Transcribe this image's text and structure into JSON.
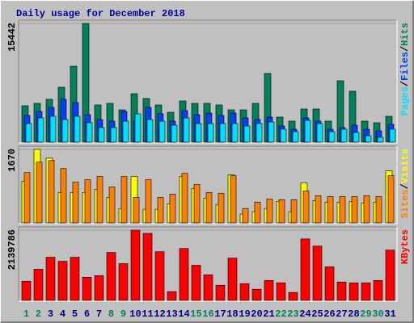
{
  "chart_data": [
    {
      "type": "bar",
      "title": "Daily usage for December 2018",
      "ylim": [
        0,
        15442
      ],
      "yticks": [
        15442
      ],
      "legend_separator": "/",
      "series": [
        {
          "name": "Hits",
          "color": "#00805C",
          "values": [
            4727,
            5042,
            5568,
            7143,
            9875,
            15442,
            4832,
            5042,
            4202,
            6303,
            5673,
            4832,
            3887,
            5358,
            5042,
            5042,
            4832,
            4202,
            4202,
            5042,
            8929,
            3257,
            2731,
            4307,
            4307,
            2731,
            7984,
            6618,
            2731,
            2521,
            3362
          ]
        },
        {
          "name": "Files",
          "color": "#0040FF",
          "values": [
            3467,
            3992,
            4517,
            5568,
            5147,
            3572,
            2941,
            2731,
            3992,
            2731,
            4517,
            3677,
            2731,
            4097,
            3572,
            3782,
            3467,
            3782,
            3152,
            2941,
            3257,
            2101,
            1681,
            3152,
            2731,
            1681,
            1891,
            2206,
            1681,
            1471,
            2311
          ]
        },
        {
          "name": "Pages",
          "color": "#00E0FF",
          "values": [
            2416,
            3152,
            3362,
            2941,
            3362,
            2521,
            1891,
            1891,
            2731,
            3677,
            2941,
            2731,
            2206,
            3152,
            2416,
            2416,
            2416,
            2416,
            2101,
            2416,
            2626,
            1681,
            1366,
            2836,
            2416,
            1366,
            1681,
            1261,
            840,
            630,
            1681
          ]
        }
      ]
    },
    {
      "type": "bar",
      "ylim": [
        0,
        1670
      ],
      "yticks": [
        1670
      ],
      "legend_separator": "/",
      "series": [
        {
          "name": "Visits",
          "color": "#FFFF00",
          "values": [
            944,
            1670,
            1470,
            690,
            690,
            690,
            762,
            581,
            327,
            1053,
            309,
            309,
            436,
            1053,
            780,
            563,
            418,
            1089,
            200,
            254,
            327,
            490,
            254,
            908,
            508,
            472,
            472,
            490,
            454,
            472,
            1180
          ]
        },
        {
          "name": "Sites",
          "color": "#FF8000",
          "values": [
            1144,
            1380,
            1416,
            1234,
            926,
            980,
            1053,
            817,
            1053,
            581,
            980,
            581,
            654,
            1126,
            871,
            690,
            672,
            1071,
            327,
            472,
            545,
            527,
            527,
            726,
            617,
            599,
            599,
            599,
            617,
            599,
            1071
          ]
        }
      ]
    },
    {
      "type": "bar",
      "ylim": [
        0,
        2139786
      ],
      "yticks": [
        2139786
      ],
      "categories": [
        "1",
        "2",
        "3",
        "4",
        "5",
        "6",
        "7",
        "8",
        "9",
        "10",
        "11",
        "12",
        "13",
        "14",
        "15",
        "16",
        "17",
        "18",
        "19",
        "20",
        "21",
        "22",
        "23",
        "24",
        "25",
        "26",
        "27",
        "28",
        "29",
        "30",
        "31"
      ],
      "category_colors": [
        "#00805C",
        "#00805C",
        "#000080",
        "#000080",
        "#000080",
        "#000080",
        "#000080",
        "#00805C",
        "#00805C",
        "#000080",
        "#000080",
        "#000080",
        "#000080",
        "#000080",
        "#00805C",
        "#00805C",
        "#000080",
        "#000080",
        "#000080",
        "#000080",
        "#000080",
        "#00805C",
        "#00805C",
        "#000080",
        "#000080",
        "#000080",
        "#000080",
        "#000080",
        "#00805C",
        "#00805C",
        "#000080"
      ],
      "series": [
        {
          "name": "KBytes",
          "color": "#FF0000",
          "values": [
            583584,
            948324,
            1313064,
            1191484,
            1313064,
            705164,
            753796,
            1458960,
            1118536,
            2139786,
            2042544,
            1483276,
            267476,
            1580540,
            1069904,
            778112,
            462004,
            1288748,
            510636,
            340424,
            607900,
            534952,
            243160,
            1872332,
            1653488,
            1021272,
            559268,
            534952,
            534952,
            607900,
            1531908
          ]
        }
      ]
    }
  ]
}
